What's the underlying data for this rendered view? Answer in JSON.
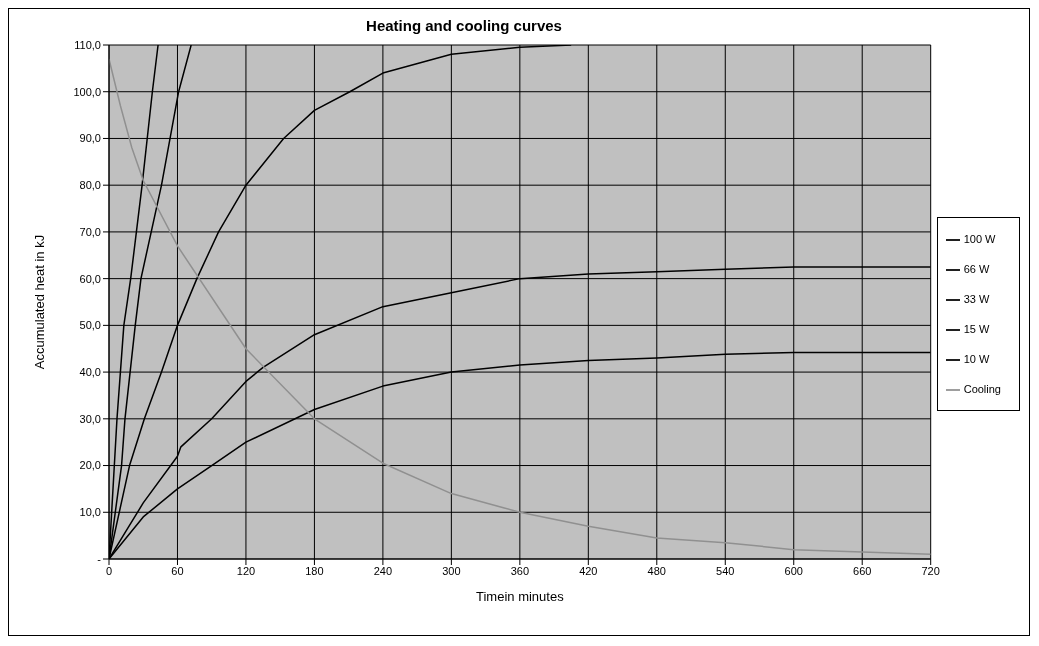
{
  "chart_data": {
    "type": "line",
    "title": "Heating and cooling curves",
    "xlabel": "Timein minutes",
    "ylabel": "Accumulated heat in kJ",
    "xlim": [
      0,
      720
    ],
    "xticks": [
      0,
      60,
      120,
      180,
      240,
      300,
      360,
      420,
      480,
      540,
      600,
      660,
      720
    ],
    "ylim": [
      0,
      110
    ],
    "yticks": [
      {
        "value": 0,
        "label": "-"
      },
      {
        "value": 10,
        "label": "10,0"
      },
      {
        "value": 20,
        "label": "20,0"
      },
      {
        "value": 30,
        "label": "30,0"
      },
      {
        "value": 40,
        "label": "40,0"
      },
      {
        "value": 50,
        "label": "50,0"
      },
      {
        "value": 60,
        "label": "60,0"
      },
      {
        "value": 70,
        "label": "70,0"
      },
      {
        "value": 80,
        "label": "80,0"
      },
      {
        "value": 90,
        "label": "90,0"
      },
      {
        "value": 100,
        "label": "100,0"
      },
      {
        "value": 110,
        "label": "110,0"
      }
    ],
    "grid": true,
    "legend": "right",
    "marker": "none",
    "line_style": "solid",
    "series": [
      {
        "name": "100 W",
        "color": "#000000",
        "x": [
          0,
          7,
          13,
          19,
          29,
          38,
          43
        ],
        "values": [
          0,
          30,
          50,
          60,
          80,
          100,
          110
        ]
      },
      {
        "name": "66 W",
        "color": "#000000",
        "x": [
          0,
          11,
          14,
          23,
          28,
          46,
          61,
          72
        ],
        "values": [
          0,
          20,
          30,
          50,
          60,
          80,
          100,
          110
        ]
      },
      {
        "name": "33 W",
        "color": "#000000",
        "x": [
          0,
          18,
          31,
          46,
          60,
          77,
          96,
          120,
          153,
          180,
          211,
          240,
          300,
          360,
          405
        ],
        "values": [
          0,
          20,
          30,
          40,
          50,
          60,
          70,
          80,
          90,
          96,
          100,
          104,
          108,
          109.5,
          110
        ]
      },
      {
        "name": "15 W",
        "color": "#000000",
        "x": [
          0,
          15,
          30,
          60,
          63,
          90,
          120,
          135,
          180,
          240,
          300,
          360,
          420,
          480,
          540,
          600,
          720
        ],
        "values": [
          0,
          6,
          12,
          22,
          24,
          30,
          38,
          41,
          48,
          54,
          57,
          60,
          61,
          61.5,
          62,
          62.5,
          62.5
        ]
      },
      {
        "name": "10 W",
        "color": "#000000",
        "x": [
          0,
          30,
          60,
          90,
          120,
          180,
          240,
          300,
          360,
          420,
          480,
          540,
          600,
          720
        ],
        "values": [
          0,
          9,
          15,
          20,
          25,
          32,
          37,
          40,
          41.5,
          42.5,
          43,
          43.8,
          44.2,
          44.2
        ]
      },
      {
        "name": "Cooling",
        "color": "#909090",
        "x": [
          0,
          10,
          20,
          30,
          60,
          120,
          180,
          240,
          300,
          360,
          420,
          480,
          540,
          600,
          660,
          720
        ],
        "values": [
          107,
          97,
          88,
          81,
          67,
          45,
          30,
          20.5,
          14,
          10,
          7,
          4.5,
          3.5,
          2,
          1.5,
          1
        ]
      }
    ]
  }
}
